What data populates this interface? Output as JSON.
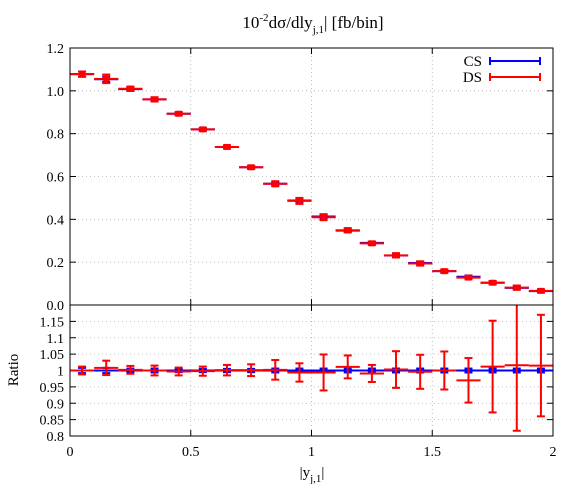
{
  "chart_data": [
    {
      "type": "scatter",
      "panel": "main",
      "title": "10",
      "title_sup": "-2",
      "title_mid": "dσ/dly",
      "title_sub": "j,1",
      "title_tail": "| [fb/bin]",
      "xlim": [
        0,
        2
      ],
      "ylim": [
        0,
        1.2
      ],
      "x_ticks": [
        "0",
        "0.5",
        "1",
        "1.5",
        "2"
      ],
      "y_ticks": [
        "0.0",
        "0.2",
        "0.4",
        "0.6",
        "0.8",
        "1.0",
        "1.2"
      ],
      "grid": true,
      "legend_position": "top-right",
      "series": [
        {
          "name": "CS",
          "color": "#0000ff",
          "x": [
            0.05,
            0.15,
            0.25,
            0.35,
            0.45,
            0.55,
            0.65,
            0.75,
            0.85,
            0.95,
            1.05,
            1.15,
            1.25,
            1.35,
            1.45,
            1.55,
            1.65,
            1.75,
            1.85,
            1.95
          ],
          "values": [
            1.078,
            1.054,
            1.008,
            0.96,
            0.893,
            0.82,
            0.738,
            0.643,
            0.566,
            0.488,
            0.413,
            0.347,
            0.29,
            0.231,
            0.196,
            0.158,
            0.132,
            0.104,
            0.08,
            0.065
          ],
          "errors": [
            0.012,
            0.012,
            0.008,
            0.008,
            0.006,
            0.006,
            0.006,
            0.006,
            0.008,
            0.01,
            0.01,
            0.006,
            0.006,
            0.006,
            0.006,
            0.006,
            0.006,
            0.006,
            0.006,
            0.004
          ]
        },
        {
          "name": "DS",
          "color": "#ff0000",
          "x": [
            0.05,
            0.15,
            0.25,
            0.35,
            0.45,
            0.55,
            0.65,
            0.75,
            0.85,
            0.95,
            1.05,
            1.15,
            1.25,
            1.35,
            1.45,
            1.55,
            1.65,
            1.75,
            1.85,
            1.95
          ],
          "values": [
            1.078,
            1.056,
            1.01,
            0.96,
            0.893,
            0.82,
            0.738,
            0.643,
            0.566,
            0.486,
            0.41,
            0.349,
            0.288,
            0.232,
            0.194,
            0.158,
            0.128,
            0.104,
            0.081,
            0.066
          ],
          "errors": [
            0.012,
            0.02,
            0.01,
            0.01,
            0.008,
            0.008,
            0.008,
            0.008,
            0.012,
            0.014,
            0.014,
            0.01,
            0.008,
            0.01,
            0.01,
            0.008,
            0.008,
            0.008,
            0.01,
            0.008
          ]
        }
      ]
    },
    {
      "type": "scatter",
      "panel": "ratio",
      "xlabel": "|y",
      "xlabel_sub": "j,1",
      "xlabel_tail": "|",
      "ylabel": "Ratio",
      "xlim": [
        0,
        2
      ],
      "ylim": [
        0.8,
        1.2
      ],
      "y_ticks": [
        "0.8",
        "0.85",
        "0.9",
        "0.95",
        "1",
        "1.05",
        "1.1",
        "1.15"
      ],
      "grid": true,
      "series": [
        {
          "name": "CS",
          "color": "#0000ff",
          "x": [
            0.05,
            0.15,
            0.25,
            0.35,
            0.45,
            0.55,
            0.65,
            0.75,
            0.85,
            0.95,
            1.05,
            1.15,
            1.25,
            1.35,
            1.45,
            1.55,
            1.65,
            1.75,
            1.85,
            1.95
          ],
          "values": [
            1,
            1,
            1,
            1,
            1,
            1,
            1,
            1,
            1,
            1,
            1,
            1,
            1,
            1,
            1,
            1,
            1,
            1,
            1,
            1
          ],
          "errors": [
            0.008,
            0.008,
            0.006,
            0.006,
            0.005,
            0.005,
            0.005,
            0.005,
            0.006,
            0.006,
            0.006,
            0.006,
            0.006,
            0.006,
            0.006,
            0.006,
            0.006,
            0.006,
            0.006,
            0.006
          ]
        },
        {
          "name": "DS",
          "color": "#ff0000",
          "x": [
            0.05,
            0.15,
            0.25,
            0.35,
            0.45,
            0.55,
            0.65,
            0.75,
            0.85,
            0.95,
            1.05,
            1.15,
            1.25,
            1.35,
            1.45,
            1.55,
            1.65,
            1.75,
            1.85,
            1.95
          ],
          "values": [
            1.0,
            1.008,
            1.002,
            1.0,
            0.997,
            0.998,
            1.001,
            1.001,
            1.002,
            0.994,
            0.994,
            1.011,
            0.991,
            1.003,
            0.996,
            1.0,
            0.97,
            1.012,
            1.016,
            1.015
          ],
          "errors": [
            0.012,
            0.022,
            0.012,
            0.015,
            0.012,
            0.014,
            0.016,
            0.018,
            0.03,
            0.028,
            0.055,
            0.035,
            0.026,
            0.056,
            0.052,
            0.058,
            0.068,
            0.14,
            0.2,
            0.155
          ]
        }
      ]
    }
  ]
}
